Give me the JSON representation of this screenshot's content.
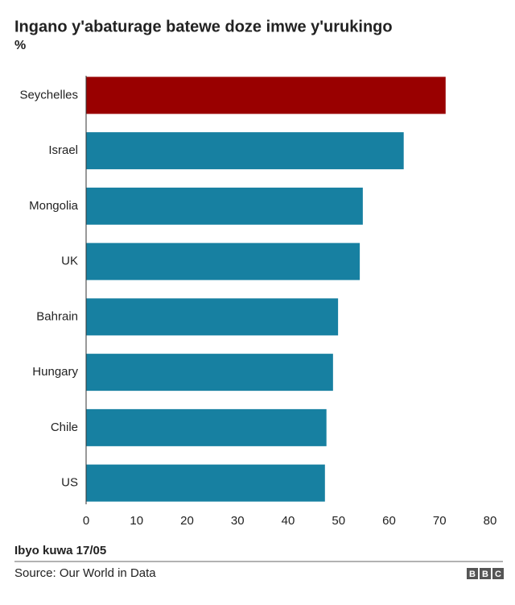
{
  "chart_data": {
    "type": "bar",
    "orientation": "horizontal",
    "title": "Ingano y'abaturage batewe doze imwe y'urukingo",
    "subtitle": "%",
    "categories": [
      "Seychelles",
      "Israel",
      "Mongolia",
      "UK",
      "Bahrain",
      "Hungary",
      "Chile",
      "US"
    ],
    "values": [
      71.2,
      62.9,
      54.8,
      54.2,
      49.9,
      48.9,
      47.6,
      47.3
    ],
    "colors": [
      "#990000",
      "#1780a1",
      "#1780a1",
      "#1780a1",
      "#1780a1",
      "#1780a1",
      "#1780a1",
      "#1780a1"
    ],
    "xlim": [
      0,
      80
    ],
    "xticks": [
      0,
      10,
      20,
      30,
      40,
      50,
      60,
      70,
      80
    ],
    "grid": false,
    "note": "Ibyo kuwa 17/05",
    "source": "Source: Our World in Data",
    "logo": [
      "B",
      "B",
      "C"
    ]
  }
}
